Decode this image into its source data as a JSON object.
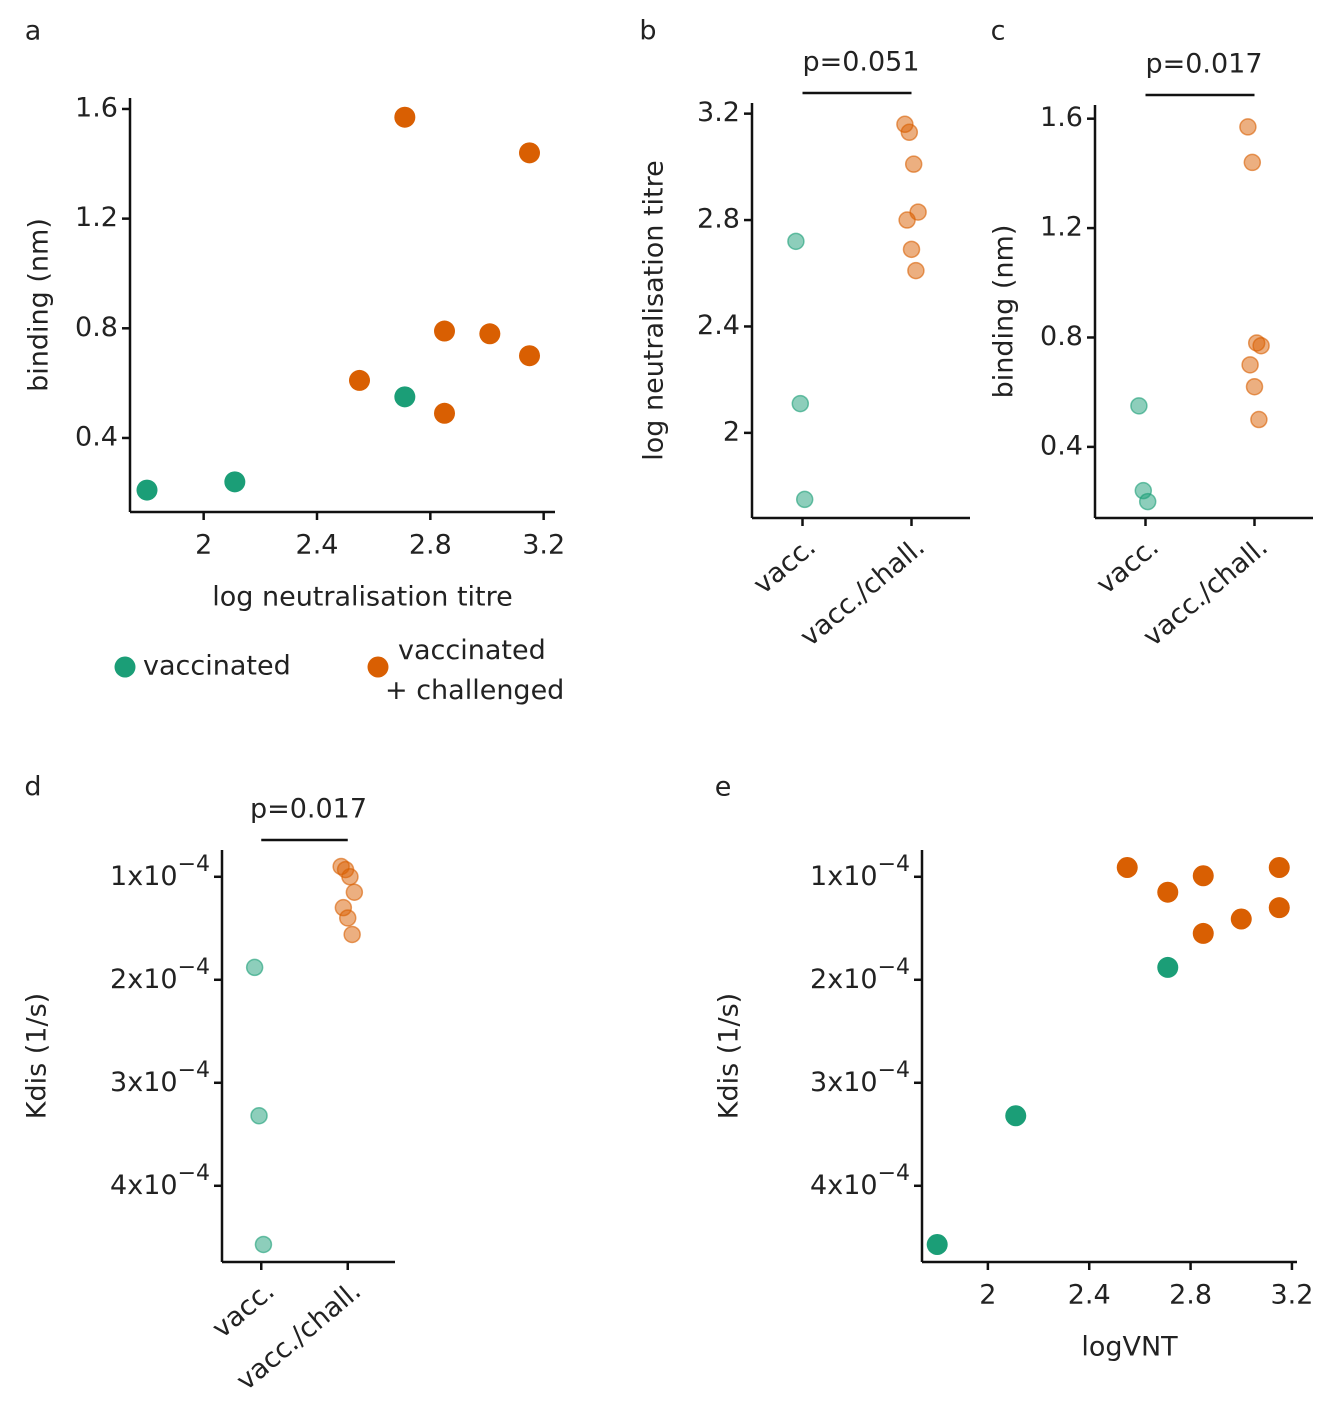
{
  "chart_data": [
    {
      "type": "scatter",
      "panel": "a",
      "xlabel": "log neutralisation titre",
      "ylabel": "binding (nm)",
      "xlim": [
        1.74,
        3.24
      ],
      "xticks": [
        2.0,
        2.4,
        2.8,
        3.2
      ],
      "ylim": [
        0.13,
        1.64
      ],
      "yticks": [
        0.4,
        0.8,
        1.2,
        1.6
      ],
      "series": [
        {
          "name": "vaccinated",
          "color": "#1b9e77",
          "x": [
            1.8,
            2.11,
            2.71
          ],
          "values": [
            0.21,
            0.24,
            0.55
          ]
        },
        {
          "name": "vaccinated + challenged",
          "color": "#d95f02",
          "x": [
            2.71,
            3.15,
            2.85,
            3.01,
            3.15,
            2.55,
            2.85
          ],
          "values": [
            1.57,
            1.44,
            0.79,
            0.78,
            0.7,
            0.61,
            0.49
          ]
        }
      ],
      "legend": "bottom"
    },
    {
      "type": "strip",
      "panel": "b",
      "ylabel": "log neutralisation titre",
      "annotation": "p=0.051",
      "ylim": [
        1.68,
        3.24
      ],
      "yticks": [
        2.0,
        2.4,
        2.8,
        3.2
      ],
      "categories": [
        "vacc.",
        "vacc./chall."
      ],
      "colors": [
        "#1b9e77",
        "#d95f02"
      ],
      "values": [
        [
          2.72,
          2.11,
          1.75
        ],
        [
          3.16,
          3.13,
          3.01,
          2.83,
          2.8,
          2.69,
          2.61
        ]
      ]
    },
    {
      "type": "strip",
      "panel": "c",
      "ylabel": "binding (nm)",
      "annotation": "p=0.017",
      "ylim": [
        0.14,
        1.65
      ],
      "yticks": [
        0.4,
        0.8,
        1.2,
        1.6
      ],
      "categories": [
        "vacc.",
        "vacc./chall."
      ],
      "colors": [
        "#1b9e77",
        "#d95f02"
      ],
      "values": [
        [
          0.55,
          0.24,
          0.2
        ],
        [
          1.57,
          1.44,
          0.78,
          0.77,
          0.7,
          0.62,
          0.5
        ]
      ]
    },
    {
      "type": "strip",
      "panel": "d",
      "ylabel": "Kdis (1/s)",
      "annotation": "p=0.017",
      "ylim": [
        0.000474,
        7.4e-05
      ],
      "yticks": [
        {
          "value": 0.0001,
          "label": "1x10−4"
        },
        {
          "value": 0.0002,
          "label": "2x10−4"
        },
        {
          "value": 0.0003,
          "label": "3x10−4"
        },
        {
          "value": 0.0004,
          "label": "4x10−4"
        }
      ],
      "categories": [
        "vacc.",
        "vacc./chall."
      ],
      "colors": [
        "#1b9e77",
        "#d95f02"
      ],
      "values": [
        [
          0.000188,
          0.000332,
          0.000457
        ],
        [
          9e-05,
          9.3e-05,
          0.0001,
          0.000115,
          0.00013,
          0.00014,
          0.000156
        ]
      ]
    },
    {
      "type": "scatter",
      "panel": "e",
      "xlabel": "logVNT",
      "ylabel": "Kdis (1/s)",
      "xlim": [
        1.74,
        3.22
      ],
      "xticks": [
        2.0,
        2.4,
        2.8,
        3.2
      ],
      "ylim": [
        0.000474,
        7.4e-05
      ],
      "yticks": [
        {
          "value": 0.0001,
          "label": "1x10−4"
        },
        {
          "value": 0.0002,
          "label": "2x10−4"
        },
        {
          "value": 0.0003,
          "label": "3x10−4"
        },
        {
          "value": 0.0004,
          "label": "4x10−4"
        }
      ],
      "series": [
        {
          "color": "#1b9e77",
          "x": [
            1.8,
            2.11,
            2.71
          ],
          "values": [
            0.000457,
            0.000332,
            0.000188
          ]
        },
        {
          "color": "#d95f02",
          "x": [
            2.55,
            2.71,
            2.85,
            3.15,
            3.0,
            3.15,
            2.85
          ],
          "values": [
            9.1e-05,
            0.000115,
            9.9e-05,
            9.1e-05,
            0.000141,
            0.00013,
            0.000155
          ]
        }
      ]
    }
  ]
}
